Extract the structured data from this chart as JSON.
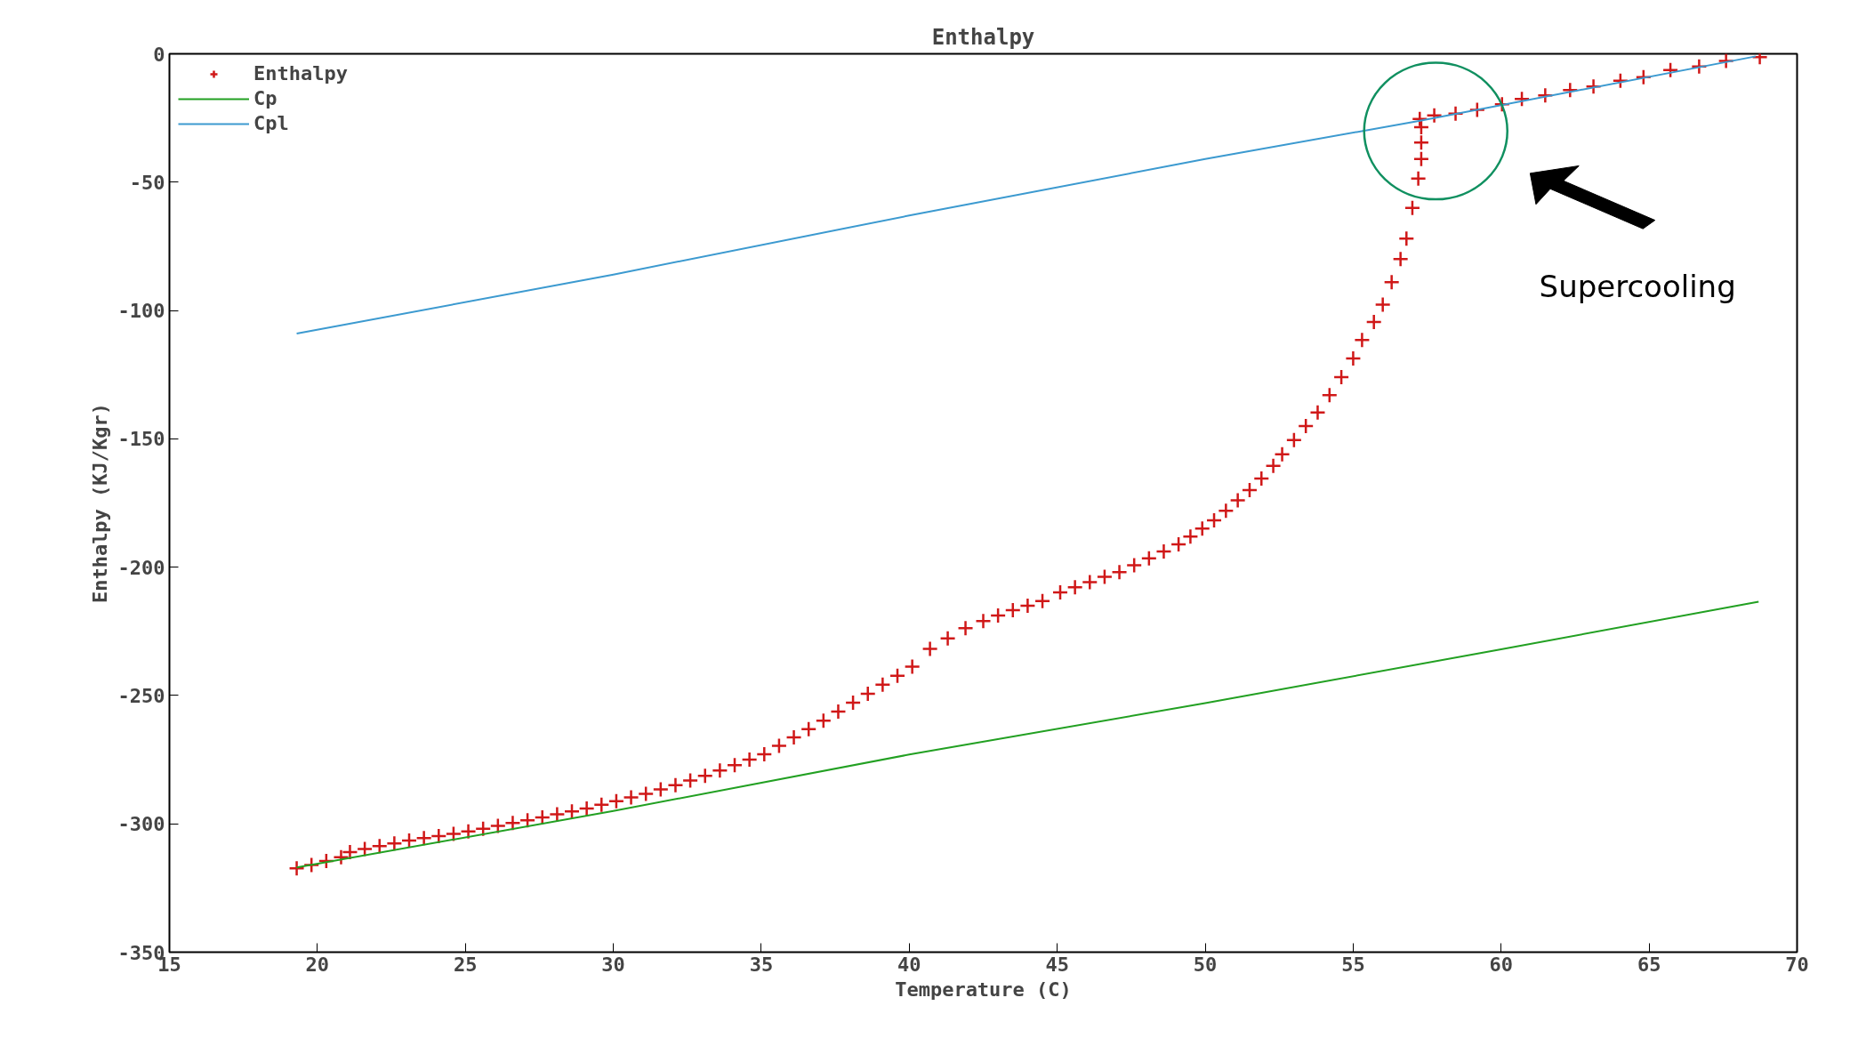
{
  "chart_data": {
    "type": "scatter",
    "title": "Enthalpy",
    "xlabel": "Temperature (C)",
    "ylabel": "Enthalpy (KJ/Kgr)",
    "xlim": [
      15,
      70
    ],
    "xticks": [
      15,
      20,
      25,
      30,
      35,
      40,
      45,
      50,
      55,
      60,
      65,
      70
    ],
    "ylim": [
      -350,
      0
    ],
    "yticks": [
      -350,
      -300,
      -250,
      -200,
      -150,
      -100,
      -50,
      0
    ],
    "grid": false,
    "legend": "top left",
    "annotations": [
      "Supercooling"
    ],
    "series": [
      {
        "name": "Enthalpy",
        "type": "scatter",
        "marker": "cross",
        "color": "#d01818",
        "x": [
          19.3,
          19.8,
          20.3,
          20.8,
          21.1,
          21.6,
          22.1,
          22.6,
          23.1,
          23.6,
          24.1,
          24.6,
          25.1,
          25.6,
          26.1,
          26.6,
          27.1,
          27.6,
          28.1,
          28.6,
          29.1,
          29.6,
          30.1,
          30.6,
          31.1,
          31.6,
          32.1,
          32.6,
          33.1,
          33.6,
          34.1,
          34.6,
          35.1,
          35.6,
          36.1,
          36.6,
          37.1,
          37.6,
          38.1,
          38.6,
          39.1,
          39.6,
          40.1,
          40.7,
          41.3,
          41.9,
          42.5,
          43.0,
          43.5,
          44.0,
          44.5,
          45.1,
          45.6,
          46.1,
          46.6,
          47.1,
          47.6,
          48.1,
          48.6,
          49.1,
          49.5,
          49.9,
          50.3,
          50.7,
          51.1,
          51.5,
          51.9,
          52.3,
          52.6,
          53.0,
          53.4,
          53.8,
          54.2,
          54.6,
          55.0,
          55.3,
          55.7,
          56.0,
          56.3,
          56.6,
          56.8,
          57.0,
          57.2,
          57.3,
          57.3,
          57.3,
          57.25,
          57.74,
          58.46,
          59.19,
          60.03,
          60.7,
          61.49,
          62.33,
          63.12,
          64.03,
          64.81,
          65.72,
          66.69,
          67.6,
          68.74
        ],
        "values": [
          -317.3,
          -316,
          -314.5,
          -313,
          -311,
          -309.8,
          -308.7,
          -307.6,
          -306.5,
          -305.6,
          -304.8,
          -303.9,
          -303,
          -301.9,
          -300.8,
          -299.7,
          -298.6,
          -297.5,
          -296.3,
          -295.2,
          -294,
          -292.6,
          -291.2,
          -289.7,
          -288.3,
          -286.6,
          -284.9,
          -283.1,
          -281.3,
          -279.2,
          -277.1,
          -275,
          -272.9,
          -269.6,
          -266.3,
          -263.1,
          -259.8,
          -256.3,
          -252.8,
          -249.3,
          -245.8,
          -242.3,
          -238.8,
          -231.8,
          -227.8,
          -223.8,
          -221,
          -218.8,
          -216.8,
          -215,
          -213.2,
          -209.8,
          -207.8,
          -205.8,
          -203.8,
          -201.9,
          -199.3,
          -196.6,
          -193.9,
          -191.1,
          -188.1,
          -185,
          -181.8,
          -178,
          -174,
          -170,
          -165.5,
          -160.5,
          -156,
          -150.5,
          -145,
          -139.7,
          -133,
          -126,
          -118.7,
          -111.5,
          -104.5,
          -97.7,
          -89,
          -80,
          -72,
          -60,
          -48.6,
          -41,
          -34.6,
          -28.6,
          -25.4,
          -24,
          -23.3,
          -21.8,
          -19.7,
          -17.6,
          -16.2,
          -14.1,
          -12.7,
          -10.5,
          -9.1,
          -6.3,
          -4.9,
          -2.8,
          -1.3
        ]
      },
      {
        "name": "Cp",
        "type": "line",
        "color": "#22a022",
        "x": [
          19.3,
          30,
          40,
          50,
          60,
          68.7
        ],
        "values": [
          -317,
          -295,
          -273,
          -253,
          -232,
          -213.5
        ]
      },
      {
        "name": "Cpl",
        "type": "line",
        "color": "#3c9ad0",
        "x": [
          19.3,
          30,
          40,
          50,
          57.3,
          68.6
        ],
        "values": [
          -109,
          -86,
          -63,
          -41,
          -26,
          -1
        ]
      }
    ]
  }
}
